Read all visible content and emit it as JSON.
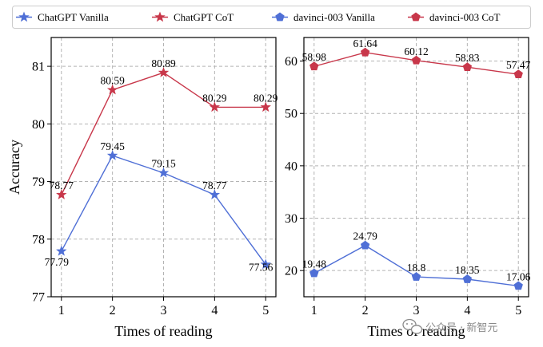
{
  "chart_data": [
    {
      "type": "line",
      "xlabel": "Times of reading",
      "ylabel": "Accuracy",
      "x": [
        1,
        2,
        3,
        4,
        5
      ],
      "xticks": [
        "1",
        "2",
        "3",
        "4",
        "5"
      ],
      "ylim": [
        77,
        81.5
      ],
      "yticks": [
        "77",
        "78",
        "79",
        "80",
        "81"
      ],
      "grid": true,
      "series": [
        {
          "name": "ChatGPT Vanilla",
          "color": "#4f6fd6",
          "marker": "star",
          "values": [
            77.79,
            79.45,
            79.15,
            78.77,
            77.56
          ],
          "labels": [
            "77.79",
            "79.45",
            "79.15",
            "78.77",
            "77.56"
          ]
        },
        {
          "name": "ChatGPT CoT",
          "color": "#c8374a",
          "marker": "star",
          "values": [
            78.77,
            80.59,
            80.89,
            80.29,
            80.29
          ],
          "labels": [
            "78.77",
            "80.59",
            "80.89",
            "80.29",
            "80.29"
          ]
        }
      ]
    },
    {
      "type": "line",
      "xlabel": "Times of reading",
      "ylabel": "",
      "x": [
        1,
        2,
        3,
        4,
        5
      ],
      "xticks": [
        "1",
        "2",
        "3",
        "4",
        "5"
      ],
      "ylim": [
        15,
        64.5
      ],
      "yticks": [
        "20",
        "30",
        "40",
        "50",
        "60"
      ],
      "grid": true,
      "series": [
        {
          "name": "davinci-003 Vanilla",
          "color": "#4f6fd6",
          "marker": "pentagon",
          "values": [
            19.48,
            24.79,
            18.8,
            18.35,
            17.06
          ],
          "labels": [
            "19.48",
            "24.79",
            "18.8",
            "18.35",
            "17.06"
          ]
        },
        {
          "name": "davinci-003 CoT",
          "color": "#c8374a",
          "marker": "pentagon",
          "values": [
            58.98,
            61.64,
            60.12,
            58.83,
            57.47
          ],
          "labels": [
            "58.98",
            "61.64",
            "60.12",
            "58.83",
            "57.47"
          ]
        }
      ]
    }
  ],
  "legend": {
    "placement": "top",
    "items": [
      {
        "label": "ChatGPT Vanilla",
        "color": "#4f6fd6",
        "marker": "star"
      },
      {
        "label": "ChatGPT CoT",
        "color": "#c8374a",
        "marker": "star"
      },
      {
        "label": "davinci-003 Vanilla",
        "color": "#4f6fd6",
        "marker": "pentagon"
      },
      {
        "label": "davinci-003 CoT",
        "color": "#c8374a",
        "marker": "pentagon"
      }
    ]
  },
  "watermark": {
    "text": "公众号 · 新智元",
    "icon": "wechat-icon"
  }
}
